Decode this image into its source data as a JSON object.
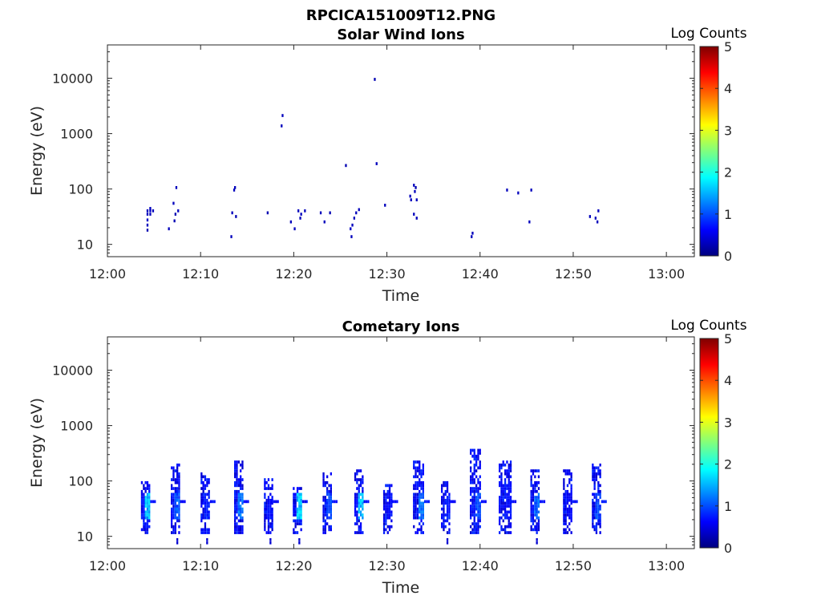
{
  "figure": {
    "title": "RPCICA151009T12.PNG"
  },
  "colormap": {
    "name": "jet",
    "range": [
      0,
      5
    ],
    "stops": [
      "#00007f",
      "#0000ff",
      "#007fff",
      "#00ffff",
      "#7fff7f",
      "#ffff00",
      "#ff7f00",
      "#ff0000",
      "#7f0000"
    ]
  },
  "chart_data": [
    {
      "type": "heatmap",
      "title": "Solar Wind Ions",
      "xlabel": "Time",
      "ylabel": "Energy (eV)",
      "yscale": "log",
      "ylim": [
        6,
        40000
      ],
      "xlim": [
        "12:00",
        "13:03"
      ],
      "x_ticks": [
        "12:00",
        "12:10",
        "12:20",
        "12:30",
        "12:40",
        "12:50",
        "13:00"
      ],
      "y_ticks": [
        "10",
        "100",
        "1000",
        "10000"
      ],
      "colorbar": {
        "label": "Log Counts",
        "ticks": [
          "0",
          "1",
          "2",
          "3",
          "4",
          "5"
        ]
      },
      "x_unit": "minutes after 12:00",
      "cells": [
        [
          4.2,
          17,
          0.25
        ],
        [
          4.2,
          21,
          0.3
        ],
        [
          4.2,
          26,
          0.35
        ],
        [
          4.2,
          33,
          0.3
        ],
        [
          4.2,
          38,
          0.3
        ],
        [
          4.5,
          38,
          0.35
        ],
        [
          4.5,
          42,
          0.3
        ],
        [
          4.5,
          33,
          0.3
        ],
        [
          4.8,
          38,
          0.3
        ],
        [
          6.5,
          18,
          0.3
        ],
        [
          7.0,
          52,
          0.3
        ],
        [
          7.1,
          25,
          0.25
        ],
        [
          7.3,
          100,
          0.3
        ],
        [
          7.5,
          38,
          0.3
        ],
        [
          7.2,
          33,
          0.25
        ],
        [
          13.2,
          13,
          0.3
        ],
        [
          13.3,
          35,
          0.3
        ],
        [
          13.5,
          90,
          0.3
        ],
        [
          13.6,
          100,
          0.3
        ],
        [
          13.7,
          30,
          0.25
        ],
        [
          17.1,
          35,
          0.25
        ],
        [
          18.6,
          1300,
          0.3
        ],
        [
          18.7,
          2000,
          0.3
        ],
        [
          19.6,
          24,
          0.3
        ],
        [
          20.0,
          18,
          0.3
        ],
        [
          20.4,
          38,
          0.3
        ],
        [
          20.6,
          28,
          0.3
        ],
        [
          20.7,
          33,
          0.3
        ],
        [
          21.1,
          38,
          0.3
        ],
        [
          22.8,
          35,
          0.3
        ],
        [
          23.2,
          24,
          0.3
        ],
        [
          23.8,
          35,
          0.25
        ],
        [
          25.5,
          250,
          0.25
        ],
        [
          26.0,
          18,
          0.35
        ],
        [
          26.1,
          13,
          0.3
        ],
        [
          26.2,
          21,
          0.3
        ],
        [
          26.4,
          28,
          0.3
        ],
        [
          26.6,
          35,
          0.3
        ],
        [
          26.9,
          40,
          0.3
        ],
        [
          28.6,
          9000,
          0.25
        ],
        [
          28.8,
          270,
          0.3
        ],
        [
          29.7,
          48,
          0.3
        ],
        [
          32.4,
          70,
          0.3
        ],
        [
          32.5,
          60,
          0.3
        ],
        [
          32.8,
          110,
          0.3
        ],
        [
          32.9,
          85,
          0.3
        ],
        [
          33.1,
          60,
          0.3
        ],
        [
          32.8,
          33,
          0.3
        ],
        [
          33.1,
          28,
          0.3
        ],
        [
          33.0,
          100,
          0.25
        ],
        [
          39.0,
          13,
          0.3
        ],
        [
          39.1,
          15,
          0.3
        ],
        [
          42.8,
          90,
          0.3
        ],
        [
          44.0,
          80,
          0.3
        ],
        [
          45.4,
          90,
          0.3
        ],
        [
          45.2,
          24,
          0.3
        ],
        [
          51.7,
          30,
          0.3
        ],
        [
          52.3,
          28,
          0.3
        ],
        [
          52.5,
          24,
          0.3
        ],
        [
          52.6,
          38,
          0.3
        ]
      ]
    },
    {
      "type": "heatmap",
      "title": "Cometary Ions",
      "xlabel": "Time",
      "ylabel": "Energy (eV)",
      "yscale": "log",
      "ylim": [
        6,
        40000
      ],
      "xlim": [
        "12:00",
        "13:03"
      ],
      "x_ticks": [
        "12:00",
        "12:10",
        "12:20",
        "12:30",
        "12:40",
        "12:50",
        "13:00"
      ],
      "y_ticks": [
        "10",
        "100",
        "1000",
        "10000"
      ],
      "colorbar": {
        "label": "Log Counts",
        "ticks": [
          "0",
          "1",
          "2",
          "3",
          "4",
          "5"
        ]
      },
      "x_unit": "minutes after 12:00",
      "bursts": [
        {
          "t": 3.6,
          "lo": 11,
          "hi": 95,
          "peak": 1.8,
          "width": 1.0,
          "tail": 0
        },
        {
          "t": 6.8,
          "lo": 11,
          "hi": 190,
          "peak": 1.2,
          "width": 1.0,
          "tail": 7
        },
        {
          "t": 10.0,
          "lo": 11,
          "hi": 130,
          "peak": 0.9,
          "width": 1.0,
          "tail": 7
        },
        {
          "t": 13.6,
          "lo": 11,
          "hi": 230,
          "peak": 1.4,
          "width": 1.0,
          "tail": 0
        },
        {
          "t": 16.8,
          "lo": 11,
          "hi": 100,
          "peak": 0.8,
          "width": 1.0,
          "tail": 7
        },
        {
          "t": 19.9,
          "lo": 11,
          "hi": 75,
          "peak": 1.9,
          "width": 1.0,
          "tail": 7
        },
        {
          "t": 23.1,
          "lo": 11,
          "hi": 140,
          "peak": 1.1,
          "width": 1.0,
          "tail": 0
        },
        {
          "t": 26.5,
          "lo": 11,
          "hi": 150,
          "peak": 1.8,
          "width": 1.0,
          "tail": 0
        },
        {
          "t": 29.6,
          "lo": 11,
          "hi": 80,
          "peak": 0.8,
          "width": 1.0,
          "tail": 0
        },
        {
          "t": 32.8,
          "lo": 11,
          "hi": 210,
          "peak": 1.4,
          "width": 1.2,
          "tail": 0
        },
        {
          "t": 35.8,
          "lo": 11,
          "hi": 90,
          "peak": 0.9,
          "width": 1.0,
          "tail": 7
        },
        {
          "t": 38.9,
          "lo": 11,
          "hi": 380,
          "peak": 1.1,
          "width": 1.2,
          "tail": 0
        },
        {
          "t": 42.0,
          "lo": 11,
          "hi": 220,
          "peak": 0.8,
          "width": 1.3,
          "tail": 0
        },
        {
          "t": 45.4,
          "lo": 11,
          "hi": 150,
          "peak": 1.3,
          "width": 1.0,
          "tail": 7
        },
        {
          "t": 48.9,
          "lo": 11,
          "hi": 160,
          "peak": 0.7,
          "width": 1.0,
          "tail": 0
        },
        {
          "t": 52.0,
          "lo": 11,
          "hi": 190,
          "peak": 1.1,
          "width": 1.0,
          "tail": 0
        }
      ]
    }
  ]
}
